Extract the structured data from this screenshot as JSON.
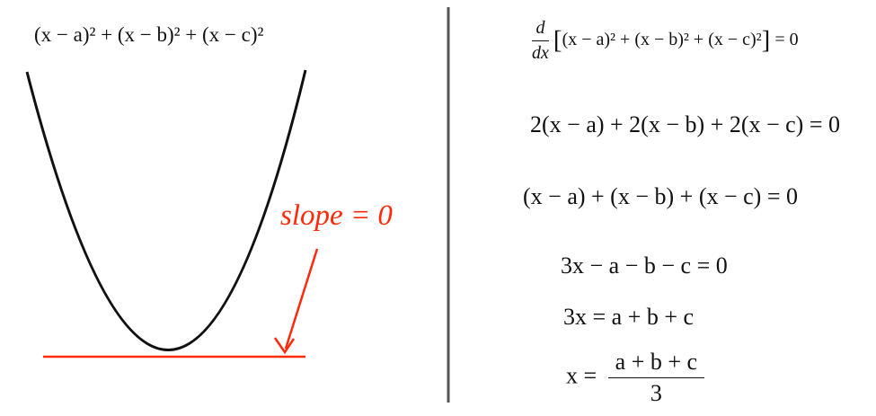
{
  "left": {
    "function_label": "(x − a)² + (x − b)² + (x − c)²",
    "slope_label": "slope = 0"
  },
  "right": {
    "eq1": {
      "d_num": "d",
      "d_den": "dx",
      "body": "(x − a)² + (x − b)² + (x − c)²",
      "rhs": "= 0"
    },
    "eq2": "2(x − a) + 2(x − b) + 2(x − c) = 0",
    "eq3": "(x − a) + (x − b) + (x − c) = 0",
    "eq4": "3x − a − b − c = 0",
    "eq5": "3x = a + b + c",
    "eq6": {
      "lhs": "x =",
      "num": "a + b + c",
      "den": "3"
    }
  },
  "colors": {
    "curve": "#111111",
    "accent": "#ff2a0a",
    "divider": "#555555"
  }
}
